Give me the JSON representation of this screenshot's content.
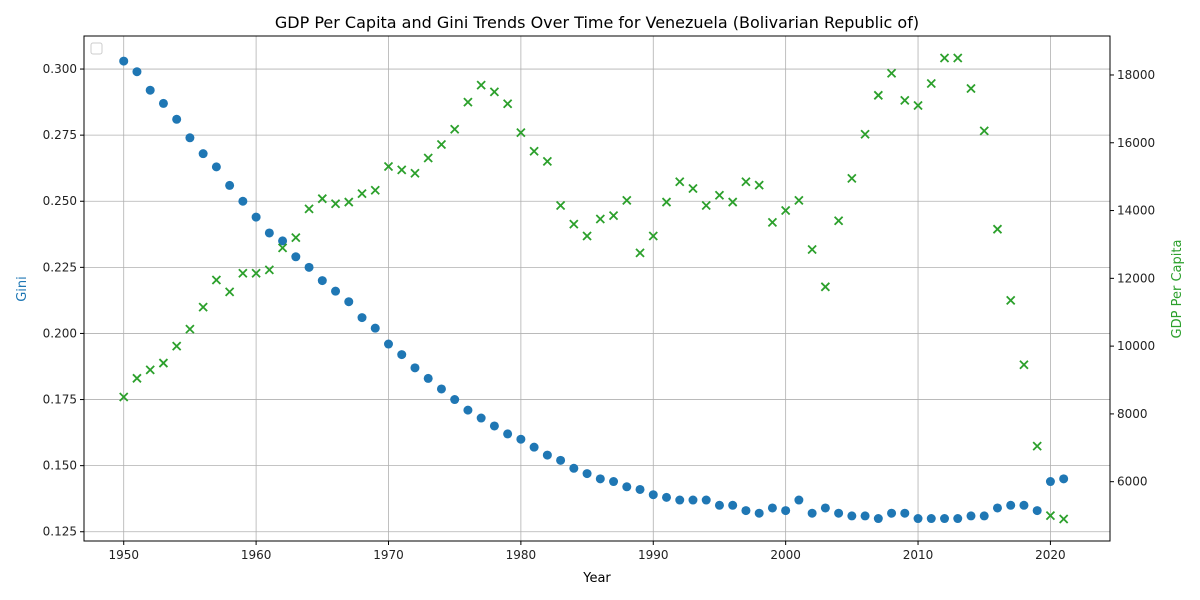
{
  "chart_data": {
    "type": "scatter",
    "title": "GDP Per Capita and Gini Trends Over Time for Venezuela (Bolivarian Republic of)",
    "xlabel": "Year",
    "ylabel_left": "Gini",
    "ylabel_right": "GDP Per Capita",
    "xlim": [
      1947,
      2024.5
    ],
    "ylim_left": [
      0.1215,
      0.3125
    ],
    "ylim_right": [
      4250,
      19150
    ],
    "xticks": [
      1950,
      1960,
      1970,
      1980,
      1990,
      2000,
      2010,
      2020
    ],
    "yticks_left": [
      "0.125",
      "0.150",
      "0.175",
      "0.200",
      "0.225",
      "0.250",
      "0.275",
      "0.300"
    ],
    "yticks_right": [
      "6000",
      "8000",
      "10000",
      "12000",
      "14000",
      "16000",
      "18000"
    ],
    "grid": true,
    "legend": "top-left",
    "colors": {
      "gini": "#1f77b4",
      "gdp": "#2ca02c"
    },
    "series": [
      {
        "axis": "left",
        "marker": "circle",
        "x": [
          1950,
          1951,
          1952,
          1953,
          1954,
          1955,
          1956,
          1957,
          1958,
          1959,
          1960,
          1961,
          1962,
          1963,
          1964,
          1965,
          1966,
          1967,
          1968,
          1969,
          1970,
          1971,
          1972,
          1973,
          1974,
          1975,
          1976,
          1977,
          1978,
          1979,
          1980,
          1981,
          1982,
          1983,
          1984,
          1985,
          1986,
          1987,
          1988,
          1989,
          1990,
          1991,
          1992,
          1993,
          1994,
          1995,
          1996,
          1997,
          1998,
          1999,
          2000,
          2001,
          2002,
          2003,
          2004,
          2005,
          2006,
          2007,
          2008,
          2009,
          2010,
          2011,
          2012,
          2013,
          2014,
          2015,
          2016,
          2017,
          2018,
          2019,
          2020,
          2021
        ],
        "values": [
          0.303,
          0.299,
          0.292,
          0.287,
          0.281,
          0.274,
          0.268,
          0.263,
          0.256,
          0.25,
          0.244,
          0.238,
          0.235,
          0.229,
          0.225,
          0.22,
          0.216,
          0.212,
          0.206,
          0.202,
          0.196,
          0.192,
          0.187,
          0.183,
          0.179,
          0.175,
          0.171,
          0.168,
          0.165,
          0.162,
          0.16,
          0.157,
          0.154,
          0.152,
          0.149,
          0.147,
          0.145,
          0.144,
          0.142,
          0.141,
          0.139,
          0.138,
          0.137,
          0.137,
          0.137,
          0.135,
          0.135,
          0.133,
          0.132,
          0.134,
          0.133,
          0.137,
          0.132,
          0.134,
          0.132,
          0.131,
          0.131,
          0.13,
          0.132,
          0.132,
          0.13,
          0.13,
          0.13,
          0.13,
          0.131,
          0.131,
          0.134,
          0.135,
          0.135,
          0.133,
          0.144,
          0.145
        ]
      },
      {
        "axis": "right",
        "marker": "x",
        "x": [
          1950,
          1951,
          1952,
          1953,
          1954,
          1955,
          1956,
          1957,
          1958,
          1959,
          1960,
          1961,
          1962,
          1963,
          1964,
          1965,
          1966,
          1967,
          1968,
          1969,
          1970,
          1971,
          1972,
          1973,
          1974,
          1975,
          1976,
          1977,
          1978,
          1979,
          1980,
          1981,
          1982,
          1983,
          1984,
          1985,
          1986,
          1987,
          1988,
          1989,
          1990,
          1991,
          1992,
          1993,
          1994,
          1995,
          1996,
          1997,
          1998,
          1999,
          2000,
          2001,
          2002,
          2003,
          2004,
          2005,
          2006,
          2007,
          2008,
          2009,
          2010,
          2011,
          2012,
          2013,
          2014,
          2015,
          2016,
          2017,
          2018,
          2019,
          2020,
          2021
        ],
        "values": [
          8500,
          9050,
          9300,
          9500,
          10000,
          10500,
          11150,
          11950,
          11600,
          12150,
          12150,
          12250,
          12900,
          13200,
          14050,
          14350,
          14200,
          14250,
          14500,
          14600,
          15300,
          15200,
          15100,
          15550,
          15950,
          16400,
          17200,
          17700,
          17500,
          17150,
          16300,
          15750,
          15450,
          14150,
          13600,
          13250,
          13750,
          13850,
          14300,
          12750,
          13250,
          14250,
          14850,
          14650,
          14150,
          14450,
          14250,
          14850,
          14750,
          13650,
          14000,
          14300,
          12850,
          11750,
          13700,
          14950,
          16250,
          17400,
          18050,
          17250,
          17100,
          17750,
          18500,
          18500,
          17600,
          16350,
          13450,
          11350,
          9450,
          7050,
          5000,
          4900
        ]
      }
    ]
  }
}
